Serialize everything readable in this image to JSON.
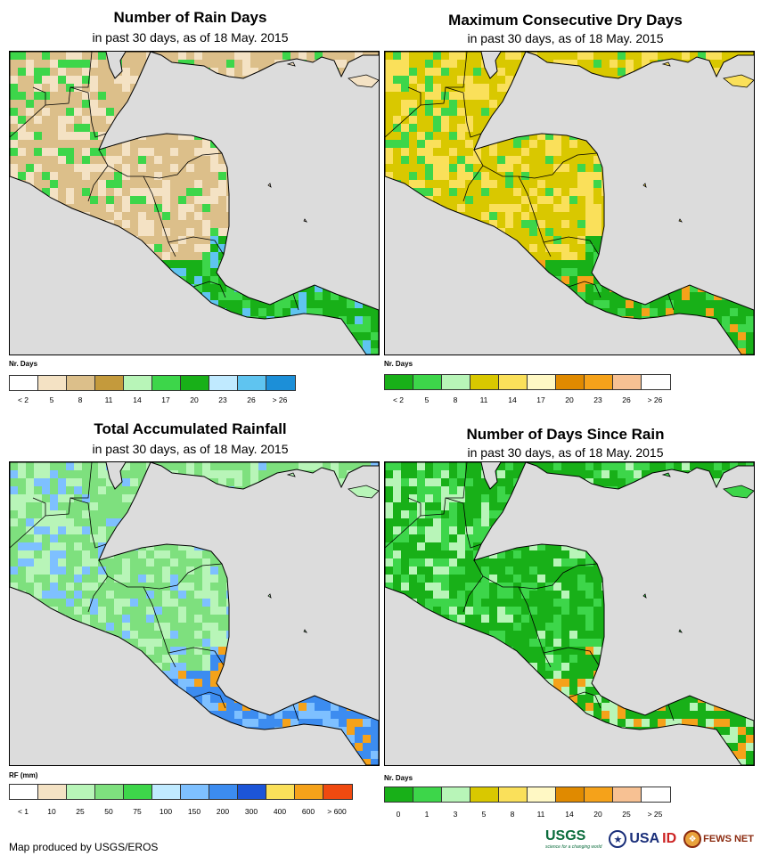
{
  "panels": [
    {
      "title": "Number of Rain Days",
      "subtitle": "in past 30 days, as of 18 May. 2015",
      "legend_title": "Nr. Days",
      "colors": [
        "#ffffff",
        "#f4e2c4",
        "#dcbf8a",
        "#c49a3c",
        "#b8f5b8",
        "#3dd64a",
        "#18b018",
        "#c0eaff",
        "#5fc4f0",
        "#1c8fd8"
      ],
      "labels": [
        "< 2",
        "5",
        "8",
        "11",
        "14",
        "17",
        "20",
        "23",
        "26",
        "> 26"
      ],
      "land": {
        "dry": "#dcbf8a",
        "mid": "#f4e2c4",
        "wet": "#3dd64a",
        "wetter": "#18b018",
        "wettest": "#5fc4f0"
      }
    },
    {
      "title": "Maximum Consecutive Dry Days",
      "subtitle": "in past 30 days, as of 18 May. 2015",
      "legend_title": "Nr. Days",
      "colors": [
        "#18b018",
        "#3dd64a",
        "#b8f5b8",
        "#d9c800",
        "#fae05a",
        "#fff8c4",
        "#e08a00",
        "#f5a21a",
        "#f7c193",
        "#ffffff"
      ],
      "labels": [
        "< 2",
        "5",
        "8",
        "11",
        "14",
        "17",
        "20",
        "23",
        "26",
        "> 26"
      ],
      "land": {
        "dry": "#d9c800",
        "mid": "#fae05a",
        "wet": "#3dd64a",
        "wetter": "#18b018",
        "wettest": "#f5a21a"
      }
    },
    {
      "title": "Total Accumulated Rainfall",
      "subtitle": "in past 30 days, as of 18 May. 2015",
      "legend_title": "RF (mm)",
      "colors": [
        "#ffffff",
        "#f4e2c4",
        "#b8f5b8",
        "#7ee07e",
        "#3dd64a",
        "#c0eaff",
        "#7ec0ff",
        "#3c8cf0",
        "#1c55d8",
        "#fae05a",
        "#f5a21a",
        "#f04a10"
      ],
      "labels": [
        "< 1",
        "10",
        "25",
        "50",
        "75",
        "100",
        "150",
        "200",
        "300",
        "400",
        "600",
        "> 600"
      ],
      "land": {
        "dry": "#7ee07e",
        "mid": "#b8f5b8",
        "wet": "#7ec0ff",
        "wetter": "#3c8cf0",
        "wettest": "#f5a21a"
      }
    },
    {
      "title": "Number of Days Since Rain",
      "subtitle": "in past 30 days, as of 18 May. 2015",
      "legend_title": "Nr. Days",
      "colors": [
        "#18b018",
        "#3dd64a",
        "#b8f5b8",
        "#d9c800",
        "#fae05a",
        "#fff8c4",
        "#e08a00",
        "#f5a21a",
        "#f7c193",
        "#ffffff"
      ],
      "labels": [
        "0",
        "1",
        "3",
        "5",
        "8",
        "11",
        "14",
        "20",
        "25",
        "> 25"
      ],
      "land": {
        "dry": "#18b018",
        "mid": "#3dd64a",
        "wet": "#b8f5b8",
        "wetter": "#18b018",
        "wettest": "#f5a21a"
      }
    }
  ],
  "footer": "Map produced by USGS/EROS",
  "logos": {
    "usgs": "USGS",
    "usgs_tag": "science for a changing world",
    "usaid_1": "USA",
    "usaid_2": "ID",
    "fews": "FEWS NET"
  }
}
